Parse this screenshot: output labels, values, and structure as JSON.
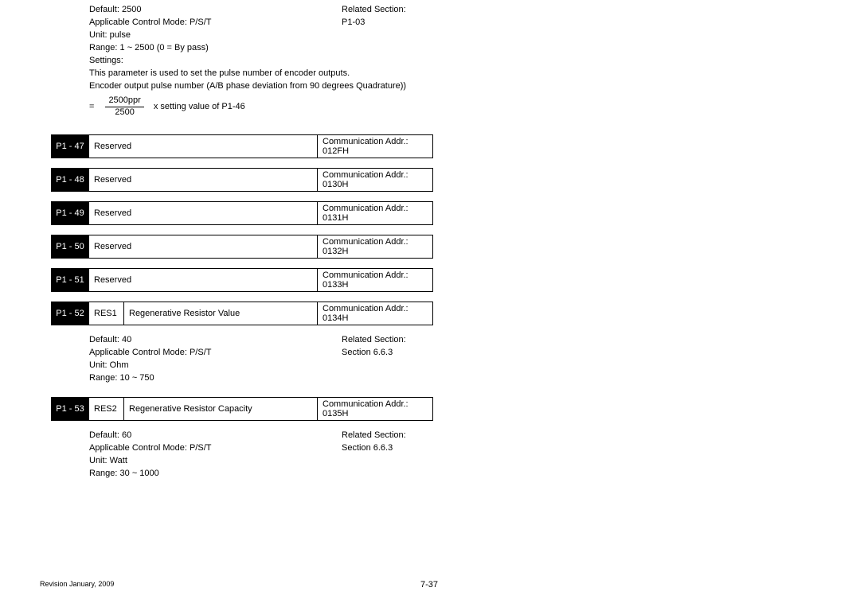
{
  "p146": {
    "default": "Default: 2500",
    "related": "Related Section:",
    "mode": "Applicable Control Mode: P/S/T",
    "relatedRef": "P1-03",
    "unit": "Unit: pulse",
    "range": "Range: 1 ~ 2500 (0 = By pass)",
    "settings": "Settings:",
    "desc1": "This parameter is used to set the pulse number of encoder outputs.",
    "desc2": "Encoder output pulse number (A/B phase deviation from 90 degrees Quadrature))",
    "formula_eq": "=",
    "formula_top": "2500ppr",
    "formula_bot": "2500",
    "formula_tail": "x setting value of P1-46"
  },
  "params": {
    "p47": {
      "code": "P1 - 47",
      "name": "Reserved",
      "addr": "Communication Addr.: 012FH"
    },
    "p48": {
      "code": "P1 - 48",
      "name": "Reserved",
      "addr": "Communication Addr.: 0130H"
    },
    "p49": {
      "code": "P1 - 49",
      "name": "Reserved",
      "addr": "Communication Addr.: 0131H"
    },
    "p50": {
      "code": "P1 - 50",
      "name": "Reserved",
      "addr": "Communication Addr.: 0132H"
    },
    "p51": {
      "code": "P1 - 51",
      "name": "Reserved",
      "addr": "Communication Addr.: 0133H"
    },
    "p52": {
      "code": "P1 - 52",
      "short": "RES1",
      "name": "Regenerative Resistor Value",
      "addr": "Communication Addr.: 0134H"
    },
    "p53": {
      "code": "P1 - 53",
      "short": "RES2",
      "name": "Regenerative Resistor Capacity",
      "addr": "Communication Addr.: 0135H"
    }
  },
  "p52details": {
    "default": "Default: 40",
    "related": "Related Section:",
    "mode": "Applicable Control Mode: P/S/T",
    "relatedRef": "Section 6.6.3",
    "unit": "Unit: Ohm",
    "range": "Range: 10 ~ 750"
  },
  "p53details": {
    "default": "Default: 60",
    "related": "Related Section:",
    "mode": "Applicable Control Mode: P/S/T",
    "relatedRef": "Section 6.6.3",
    "unit": "Unit: Watt",
    "range": "Range: 30 ~ 1000"
  },
  "footer": {
    "left": "Revision January, 2009",
    "right": "7-37"
  }
}
